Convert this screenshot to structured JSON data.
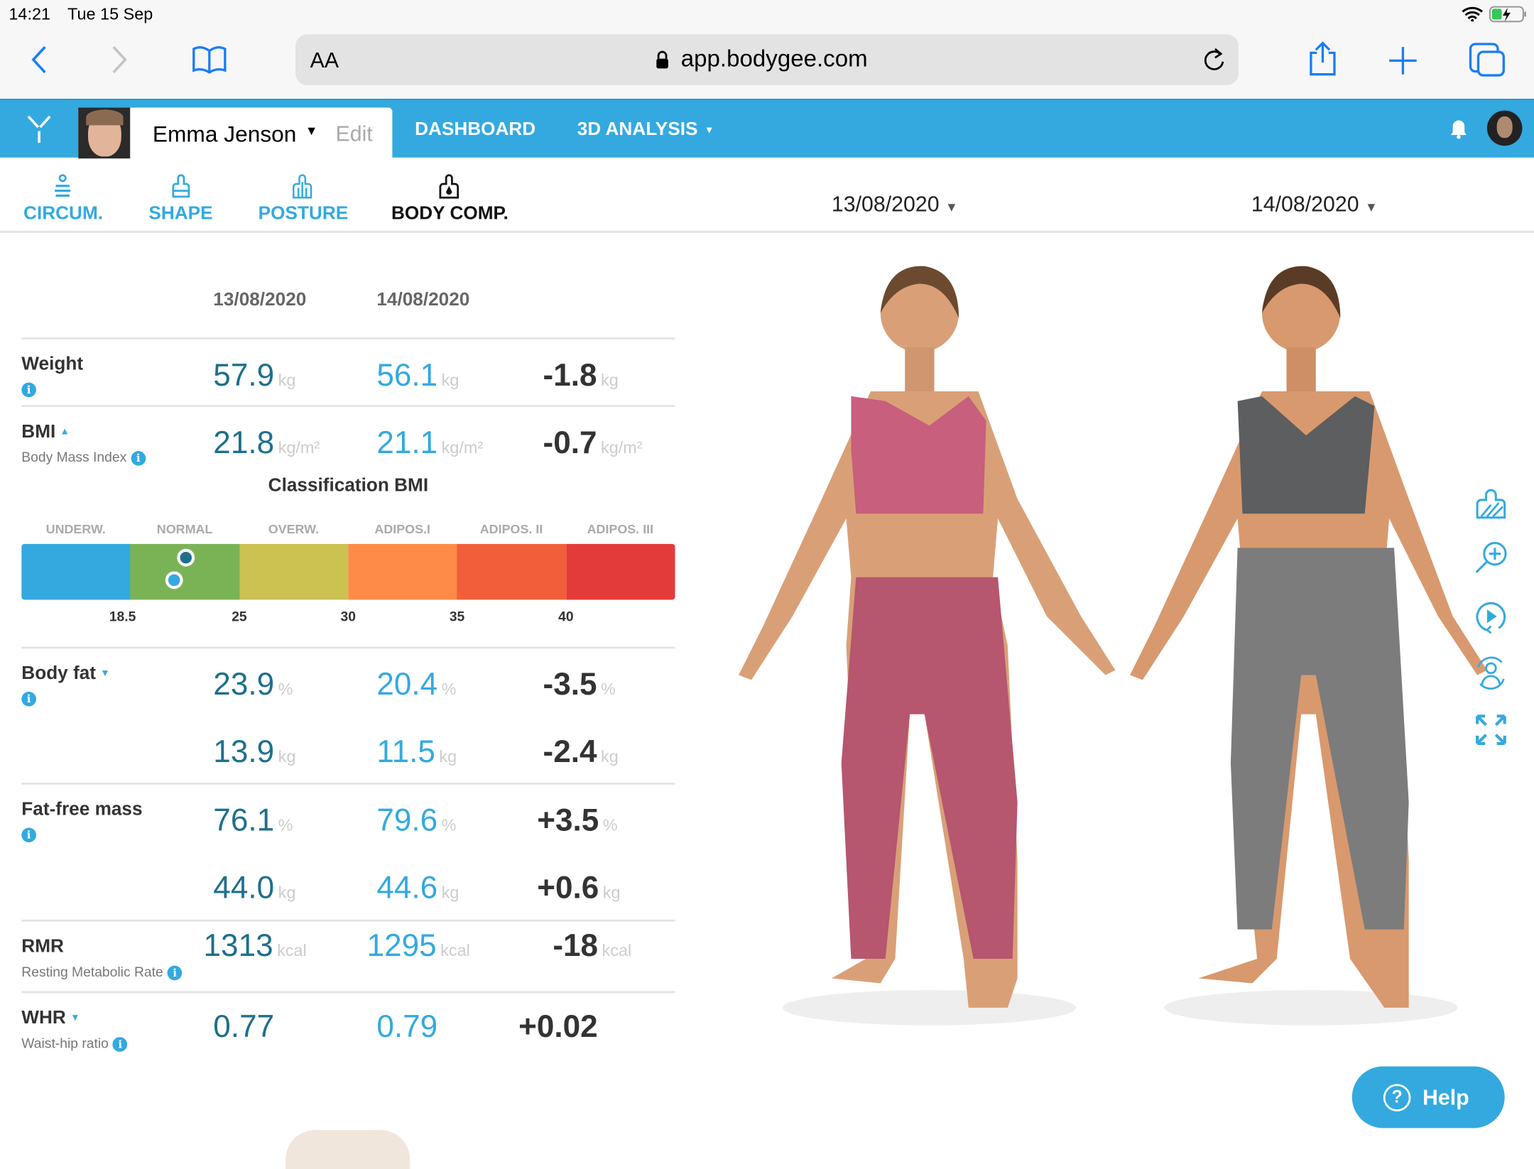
{
  "status_bar": {
    "time": "14:21",
    "date": "Tue 15 Sep"
  },
  "browser": {
    "text_size_label": "AA",
    "url": "app.bodygee.com"
  },
  "header": {
    "user_name": "Emma Jenson",
    "edit_label": "Edit",
    "nav": [
      "DASHBOARD",
      "3D ANALYSIS"
    ]
  },
  "tabs": [
    {
      "label": "CIRCUM.",
      "icon": "circumference-icon"
    },
    {
      "label": "SHAPE",
      "icon": "shape-icon"
    },
    {
      "label": "POSTURE",
      "icon": "posture-icon"
    },
    {
      "label": "BODY COMP.",
      "icon": "body-comp-icon",
      "active": true
    }
  ],
  "date_selectors": [
    "13/08/2020",
    "14/08/2020"
  ],
  "table": {
    "dates": [
      "13/08/2020",
      "14/08/2020"
    ],
    "rows": [
      {
        "label": "Weight",
        "sub": "",
        "values": [
          {
            "v1": "57.9",
            "v2": "56.1",
            "d": "-1.8",
            "u": "kg"
          }
        ]
      },
      {
        "label": "BMI",
        "sub": "Body Mass Index",
        "values": [
          {
            "v1": "21.8",
            "v2": "21.1",
            "d": "-0.7",
            "u": "kg/m²"
          }
        ]
      },
      {
        "label": "Body fat",
        "sub": "",
        "values": [
          {
            "v1": "23.9",
            "v2": "20.4",
            "d": "-3.5",
            "u": "%"
          },
          {
            "v1": "13.9",
            "v2": "11.5",
            "d": "-2.4",
            "u": "kg"
          }
        ]
      },
      {
        "label": "Fat-free mass",
        "sub": "",
        "values": [
          {
            "v1": "76.1",
            "v2": "79.6",
            "d": "+3.5",
            "u": "%"
          },
          {
            "v1": "44.0",
            "v2": "44.6",
            "d": "+0.6",
            "u": "kg"
          }
        ]
      },
      {
        "label": "RMR",
        "sub": "Resting Metabolic Rate",
        "values": [
          {
            "v1": "1313",
            "v2": "1295",
            "d": "-18",
            "u": "kcal"
          }
        ]
      },
      {
        "label": "WHR",
        "sub": "Waist-hip ratio",
        "values": [
          {
            "v1": "0.77",
            "v2": "0.79",
            "d": "+0.02",
            "u": ""
          }
        ]
      }
    ]
  },
  "bmi_classification": {
    "title": "Classification BMI",
    "categories": [
      "UNDERW.",
      "NORMAL",
      "OVERW.",
      "ADIPOS.I",
      "ADIPOS. II",
      "ADIPOS. III"
    ],
    "colors": [
      "#33a9e0",
      "#7ab356",
      "#cbc252",
      "#fe8b48",
      "#f05f3a",
      "#e33b3a"
    ],
    "ticks": [
      "18.5",
      "25",
      "30",
      "35",
      "40"
    ],
    "markers": [
      {
        "value": 21.8,
        "color": "#1e6f8c"
      },
      {
        "value": 21.1,
        "color": "#33a9e0"
      }
    ]
  },
  "help_label": "Help",
  "colors": {
    "accent": "#33a9e0",
    "date1": "#1e6f8c",
    "date2": "#33a9e0"
  }
}
